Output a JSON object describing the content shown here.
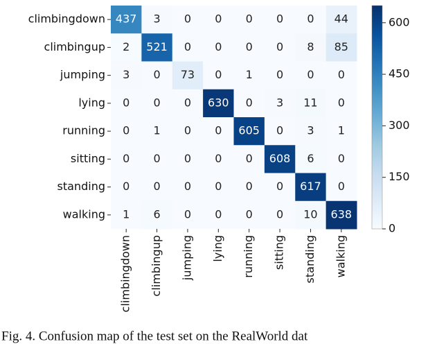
{
  "chart_data": {
    "type": "heatmap",
    "x_categories": [
      "climbingdown",
      "climbingup",
      "jumping",
      "lying",
      "running",
      "sitting",
      "standing",
      "walking"
    ],
    "y_categories": [
      "climbingdown",
      "climbingup",
      "jumping",
      "lying",
      "running",
      "sitting",
      "standing",
      "walking"
    ],
    "values": [
      [
        437,
        3,
        0,
        0,
        0,
        0,
        0,
        44
      ],
      [
        2,
        521,
        0,
        0,
        0,
        0,
        8,
        85
      ],
      [
        3,
        0,
        73,
        0,
        1,
        0,
        0,
        0
      ],
      [
        0,
        0,
        0,
        630,
        0,
        3,
        11,
        0
      ],
      [
        0,
        1,
        0,
        0,
        605,
        0,
        3,
        1
      ],
      [
        0,
        0,
        0,
        0,
        0,
        608,
        6,
        0
      ],
      [
        0,
        0,
        0,
        0,
        0,
        0,
        617,
        0
      ],
      [
        1,
        6,
        0,
        0,
        0,
        0,
        10,
        638
      ]
    ],
    "colormap": "Blues",
    "clim": [
      0,
      650
    ],
    "cticks": [
      0,
      150,
      300,
      450,
      600
    ]
  },
  "caption": "Fig. 4. Confusion map of the test set on the RealWorld dat"
}
